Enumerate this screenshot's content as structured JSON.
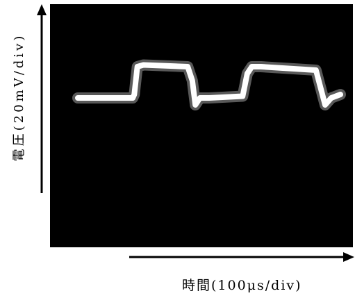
{
  "chart_data": {
    "type": "line",
    "ylabel": "電圧(20mV/div)",
    "xlabel": "時間(100μs/div)",
    "grid": false,
    "background_color": "#000000",
    "trace_color": "#ffffff",
    "series": [
      {
        "x": [
          0.0,
          1.8,
          1.85,
          1.95,
          2.15,
          3.6,
          3.75,
          3.85,
          4.0,
          4.3,
          5.4,
          5.55,
          5.7,
          6.0,
          7.8,
          7.95,
          8.1,
          8.3,
          8.6
        ],
        "values": [
          0.8,
          0.8,
          0.9,
          1.7,
          1.75,
          1.7,
          1.3,
          0.6,
          0.8,
          0.8,
          0.85,
          1.5,
          1.7,
          1.7,
          1.6,
          1.1,
          0.6,
          0.8,
          0.9
        ]
      }
    ],
    "xlim": [
      0,
      8.6
    ],
    "ylim": [
      -3.5,
      3.5
    ]
  }
}
